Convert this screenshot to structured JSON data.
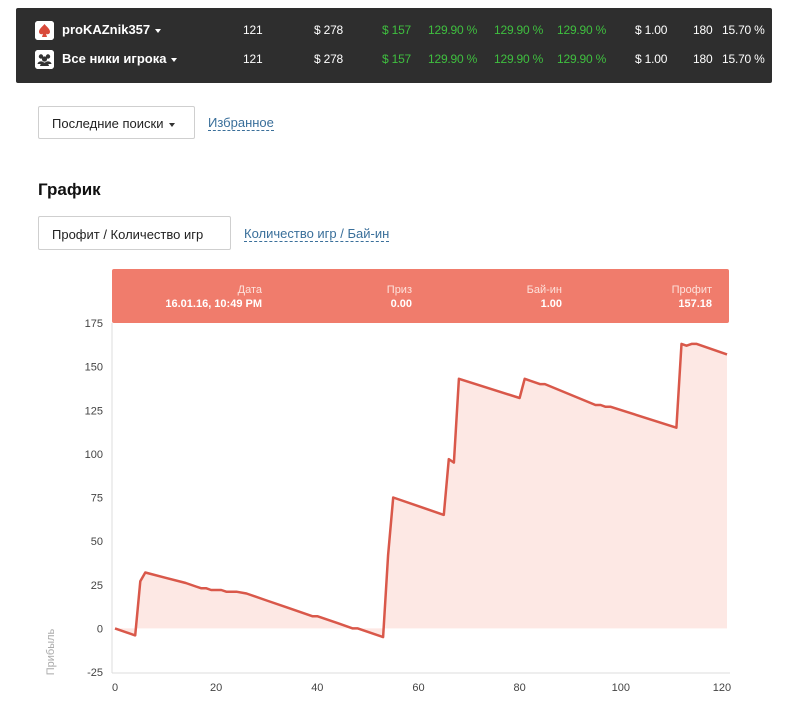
{
  "stats": {
    "rows": [
      {
        "icon": "spade-icon",
        "name": "proKAZnik357",
        "games": "121",
        "buyins": "$ 278",
        "profit": "$ 157",
        "roi1": "129.90 %",
        "roi2": "129.90 %",
        "roi3": "129.90 %",
        "avg_buyin": "$ 1.00",
        "count": "180",
        "itm": "15.70 %"
      },
      {
        "icon": "group-icon",
        "name": "Все ники игрока",
        "games": "121",
        "buyins": "$ 278",
        "profit": "$ 157",
        "roi1": "129.90 %",
        "roi2": "129.90 %",
        "roi3": "129.90 %",
        "avg_buyin": "$ 1.00",
        "count": "180",
        "itm": "15.70 %"
      }
    ]
  },
  "controls": {
    "recent_searches": "Последние поиски",
    "favorites": "Избранное"
  },
  "graph": {
    "title": "График",
    "tab_active": "Профит / Количество игр",
    "tab_alt": "Количество игр / Бай-ин"
  },
  "tooltip": {
    "date_label": "Дата",
    "date_value": "16.01.16, 10:49 PM",
    "prize_label": "Приз",
    "prize_value": "0.00",
    "buyin_label": "Бай-ин",
    "buyin_value": "1.00",
    "profit_label": "Профит",
    "profit_value": "157.18"
  },
  "colors": {
    "panel_bg": "#2e2e2e",
    "green": "#3fbf3f",
    "line": "#d9584a",
    "area": "#fde8e4",
    "tooltip_bg": "#f07c6c"
  },
  "chart_data": {
    "type": "area",
    "ylabel": "Прибыль",
    "xlabel": "",
    "xlim": [
      0,
      121
    ],
    "ylim": [
      -25,
      175
    ],
    "x_ticks": [
      0,
      20,
      40,
      60,
      80,
      100,
      120
    ],
    "y_ticks": [
      -25,
      0,
      25,
      50,
      75,
      100,
      125,
      150,
      175
    ],
    "series": [
      {
        "name": "",
        "x": [
          0,
          4,
          5,
          6,
          10,
          14,
          16,
          17,
          18,
          19,
          20,
          21,
          22,
          23,
          24,
          26,
          30,
          34,
          39,
          40,
          44,
          47,
          48,
          53,
          54,
          55,
          60,
          65,
          66,
          67,
          68,
          80,
          81,
          82,
          83,
          84,
          85,
          95,
          96,
          97,
          98,
          111,
          112,
          113,
          114,
          115,
          121
        ],
        "y": [
          0,
          -4,
          27,
          32,
          29,
          26,
          24,
          23,
          23,
          22,
          22,
          22,
          21,
          21,
          21,
          20,
          16,
          12,
          7,
          7,
          3,
          0,
          0,
          -5,
          42,
          75,
          70,
          65,
          97,
          95,
          143,
          132,
          143,
          142,
          141,
          140,
          140,
          128,
          128,
          127,
          127,
          115,
          163,
          162,
          163,
          163,
          157
        ]
      }
    ]
  }
}
